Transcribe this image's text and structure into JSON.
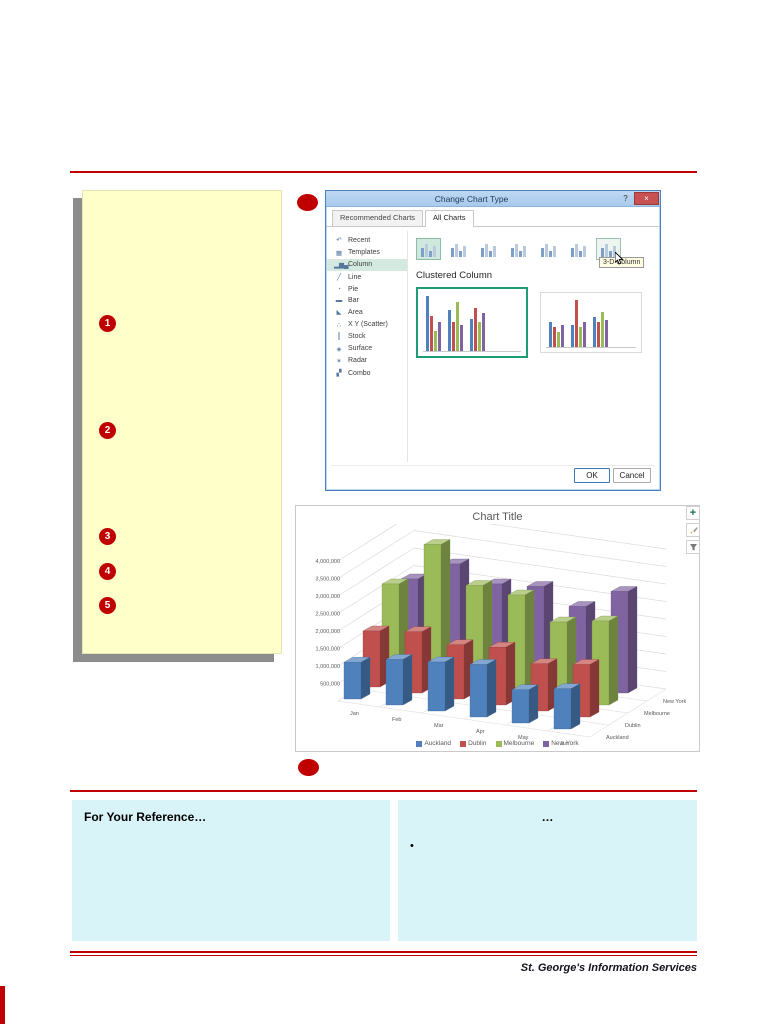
{
  "page": {
    "footer": "St. George's Information Services"
  },
  "note": {
    "steps": [
      "1",
      "2",
      "3",
      "4",
      "5"
    ]
  },
  "dialog": {
    "title": "Change Chart Type",
    "help_label": "?",
    "close_label": "×",
    "tabs": [
      {
        "label": "Recommended Charts",
        "active": false
      },
      {
        "label": "All Charts",
        "active": true
      }
    ],
    "sidebar": [
      {
        "icon": "↶",
        "label": "Recent"
      },
      {
        "icon": "▦",
        "label": "Templates"
      },
      {
        "icon": "▂▆▄",
        "label": "Column",
        "selected": true
      },
      {
        "icon": "╱",
        "label": "Line"
      },
      {
        "icon": "◔",
        "label": "Pie"
      },
      {
        "icon": "▬",
        "label": "Bar"
      },
      {
        "icon": "◣",
        "label": "Area"
      },
      {
        "icon": "∴",
        "label": "X Y (Scatter)"
      },
      {
        "icon": "║",
        "label": "Stock"
      },
      {
        "icon": "◈",
        "label": "Surface"
      },
      {
        "icon": "✶",
        "label": "Radar"
      },
      {
        "icon": "▞",
        "label": "Combo"
      }
    ],
    "subtype_label": "Clustered Column",
    "subtypes": [
      {
        "name": "Clustered Column",
        "selected": true
      },
      {
        "name": "Stacked Column"
      },
      {
        "name": "100% Stacked Column"
      },
      {
        "name": "3-D Clustered Column"
      },
      {
        "name": "3-D Stacked Column"
      },
      {
        "name": "3-D 100% Stacked Column"
      },
      {
        "name": "3-D Column",
        "hovered": true
      }
    ],
    "tooltip": "3-D Column",
    "preview_colors": [
      "#4f81bd",
      "#c0504d",
      "#9bbb59",
      "#8064a2"
    ],
    "previews": [
      {
        "selected": true,
        "groups": [
          [
            0.95,
            0.6,
            0.35,
            0.5
          ],
          [
            0.7,
            0.5,
            0.85,
            0.45
          ],
          [
            0.55,
            0.75,
            0.5,
            0.65
          ]
        ]
      },
      {
        "selected": false,
        "groups": [
          [
            0.5,
            0.4,
            0.3,
            0.45
          ],
          [
            0.45,
            0.95,
            0.4,
            0.5
          ],
          [
            0.6,
            0.5,
            0.7,
            0.55
          ]
        ]
      }
    ],
    "ok_label": "OK",
    "cancel_label": "Cancel"
  },
  "chart_data": {
    "type": "bar",
    "variant": "3d-column",
    "title": "Chart Title",
    "categories": [
      "Jan",
      "Feb",
      "Mar",
      "Apr",
      "May",
      "Jun"
    ],
    "series": [
      {
        "name": "Auckland",
        "color": "#4f81bd",
        "values": [
          1050000,
          1300000,
          1400000,
          1500000,
          950000,
          1150000
        ]
      },
      {
        "name": "Dublin",
        "color": "#c0504d",
        "values": [
          1600000,
          1750000,
          1550000,
          1650000,
          1350000,
          1500000
        ]
      },
      {
        "name": "Melbourne",
        "color": "#9bbb59",
        "values": [
          2600000,
          3900000,
          2900000,
          2800000,
          2200000,
          2400000
        ]
      },
      {
        "name": "New York",
        "color": "#8064a2",
        "values": [
          2400000,
          3000000,
          2600000,
          2700000,
          2300000,
          2900000
        ]
      }
    ],
    "ylim": [
      0,
      4000000
    ],
    "ytick_step": 500000,
    "ytick_labels": [
      "500,000",
      "1,000,000",
      "1,500,000",
      "2,000,000",
      "2,500,000",
      "3,000,000",
      "3,500,000",
      "4,000,000"
    ],
    "legend_position": "bottom",
    "depth_order_back_to_front": [
      "New York",
      "Melbourne",
      "Dublin",
      "Auckland"
    ],
    "grid": true
  },
  "reference": {
    "left_title": "For Your Reference…",
    "right_title": "…",
    "right_bullet": "•"
  }
}
